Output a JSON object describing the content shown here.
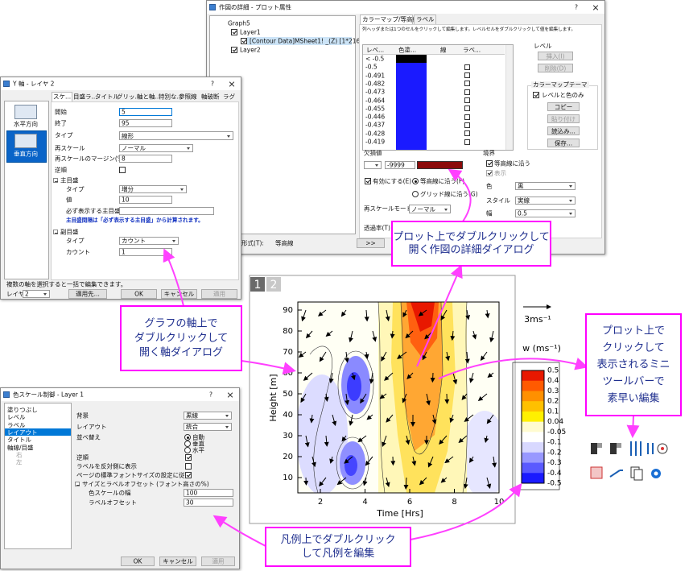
{
  "plot_details": {
    "title": "作図の詳細 - プロット属性",
    "help": "?",
    "tree": [
      "Graph5",
      "Layer1",
      "[Contour Data]MSheet1! _(Z) [1*216*]",
      "Layer2"
    ],
    "tabs": [
      "カラーマップ/等高線",
      "ラベル"
    ],
    "instruction": "列ヘッダまたは1つのセルをクリックして編集します。レベルセルをダブルクリックして値を編集します。",
    "columns": [
      "レベ...",
      "色塗...",
      "線",
      "ラベ..."
    ],
    "levels": [
      "< -0.5",
      "-0.5",
      "-0.491",
      "-0.482",
      "-0.473",
      "-0.464",
      "-0.455",
      "-0.446",
      "-0.437",
      "-0.428",
      "-0.419"
    ],
    "level_group": "レベル",
    "insert": "挿入(I)",
    "delete": "削除(D)",
    "theme_group": "カラーマップテーマ",
    "levels_and_colors": "レベルと色のみ",
    "copy": "コピー",
    "paste": "貼り付け",
    "load": "読込み...",
    "save": "保存...",
    "missing_group": "欠損値",
    "missing_value": "-9999",
    "enable": "有効にする(E)",
    "along_contour": "等高線に沿う(F)",
    "along_grid": "グリッド線に沿う(G)",
    "rescale_mode": "再スケールモード(R)",
    "rescale_value": "ノーマル",
    "transparency": "透過率(T)",
    "boundary_group": "境界",
    "boundary_along": "等高線に沿う",
    "show": "表示",
    "color_label": "色",
    "color_value": "黒",
    "style_label": "スタイル",
    "style_value": "実線",
    "width_label": "幅",
    "width_value": "0.5",
    "format_label": "形式(T):",
    "format_value": "等高線",
    "more": ">>"
  },
  "axis_dialog": {
    "title": "Y 軸 - レイヤ 2",
    "help": "?",
    "directions": [
      "水平方向",
      "垂直方向"
    ],
    "tabs": [
      "スケ...",
      "目盛ラ...",
      "タイトル",
      "グリッ...",
      "軸と軸...",
      "特別な...",
      "参照線",
      "軸破断",
      "ラグ"
    ],
    "start_label": "開始",
    "start_value": "5",
    "end_label": "終了",
    "end_value": "95",
    "type_label": "タイプ",
    "type_value": "線形",
    "rescale_label": "再スケール",
    "rescale_value": "ノーマル",
    "margin_label": "再スケールのマージン(%)",
    "margin_value": "8",
    "reverse_label": "逆順",
    "major_group": "主目盛",
    "major_type_label": "タイプ",
    "major_type_value": "増分",
    "major_value_label": "値",
    "major_value": "10",
    "anchor_label": "必ず表示する主目盛",
    "major_note": "主目盛間隔は「必ず表示する主目盛」から計算されます。",
    "minor_group": "副目盛",
    "minor_type_label": "タイプ",
    "minor_type_value": "カウント",
    "count_label": "カウント",
    "count_value": "1",
    "footer_note": "複数の軸を選択すると一括で編集できます。",
    "layer_label": "レイヤ",
    "layer_value": "2",
    "apply_to": "適用先...",
    "ok": "OK",
    "cancel": "キャンセル",
    "apply": "適用"
  },
  "color_scale_dialog": {
    "title": "色スケール制御 - Layer 1",
    "help": "?",
    "tree": [
      "塗りつぶし",
      "レベル",
      "ラベル",
      "レイアウト",
      "タイトル",
      "軸線/目盛",
      "右",
      "左"
    ],
    "background_label": "背景",
    "background_value": "黒線",
    "layout_label": "レイアウト",
    "layout_value": "統合",
    "order_label": "並べ替え",
    "order_options": [
      "自動",
      "垂直",
      "水平"
    ],
    "reverse_label": "逆順",
    "opposite_label": "ラベルを反対側に表示",
    "font_label": "ページの標準フォントサイズの設定に従う",
    "size_group": "サイズとラベルオフセット (フォント高さの%)",
    "width_label": "色スケールの幅",
    "width_value": "100",
    "offset_label": "ラベルオフセット",
    "offset_value": "30",
    "ok": "OK",
    "cancel": "キャンセル",
    "apply": "適用"
  },
  "plot": {
    "layers": [
      "1",
      "2"
    ],
    "y_label": "Height [m]",
    "x_label": "Time [Hrs]",
    "yticks": [
      10,
      20,
      30,
      40,
      50,
      60,
      70,
      80,
      90
    ],
    "xticks": [
      2,
      4,
      6,
      8,
      10
    ],
    "vector_scale": "3ms⁻¹",
    "colorbar_title": "w (ms⁻¹)",
    "colorbar_labels": [
      0.5,
      0.4,
      0.3,
      0.2,
      0.1,
      0.04,
      -0.05,
      -0.1,
      -0.2,
      -0.3,
      -0.4,
      -0.5
    ]
  },
  "callouts": [
    {
      "lines": [
        "プロット上でダブルクリックして",
        "開く作図の詳細ダイアログ"
      ]
    },
    {
      "lines": [
        "グラフの軸上で",
        "ダブルクリックして",
        "開く軸ダイアログ"
      ]
    },
    {
      "lines": [
        "プロット上で",
        "クリックして",
        "表示されるミニ",
        "ツールバーで",
        "素早い編集"
      ]
    },
    {
      "lines": [
        "凡例上でダブルクリック",
        "して凡例を編集"
      ]
    }
  ]
}
